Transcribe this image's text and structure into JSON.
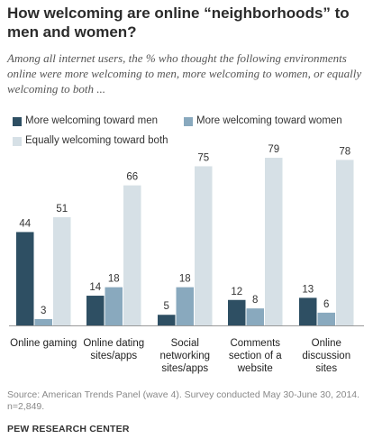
{
  "title": "How welcoming are online “neighborhoods” to men and women?",
  "subtitle": "Among all internet users, the % who thought the following environments online were more welcoming to men, more welcoming to women, or equally welcoming to both ...",
  "colors": {
    "men": "#2e4f63",
    "women": "#89a9be",
    "both": "#d6e0e6"
  },
  "chart_data": {
    "type": "bar",
    "categories": [
      "Online gaming",
      "Online dating sites/apps",
      "Social networking sites/apps",
      "Comments section of a website",
      "Online discussion sites"
    ],
    "category_lines": [
      [
        "Online gaming"
      ],
      [
        "Online dating",
        "sites/apps"
      ],
      [
        "Social",
        "networking",
        "sites/apps"
      ],
      [
        "Comments",
        "section of a",
        "website"
      ],
      [
        "Online",
        "discussion",
        "sites"
      ]
    ],
    "series": [
      {
        "name": "More welcoming toward men",
        "values": [
          44,
          14,
          5,
          12,
          13
        ]
      },
      {
        "name": "More welcoming toward women",
        "values": [
          3,
          18,
          18,
          8,
          6
        ]
      },
      {
        "name": "Equally welcoming toward both",
        "values": [
          51,
          66,
          75,
          79,
          78
        ]
      }
    ],
    "ylim": [
      0,
      100
    ],
    "grid": false,
    "legend_position": "top"
  },
  "source": "Source: American Trends Panel (wave 4). Survey conducted May 30-June 30, 2014. n=2,849.",
  "organization": "PEW RESEARCH CENTER"
}
